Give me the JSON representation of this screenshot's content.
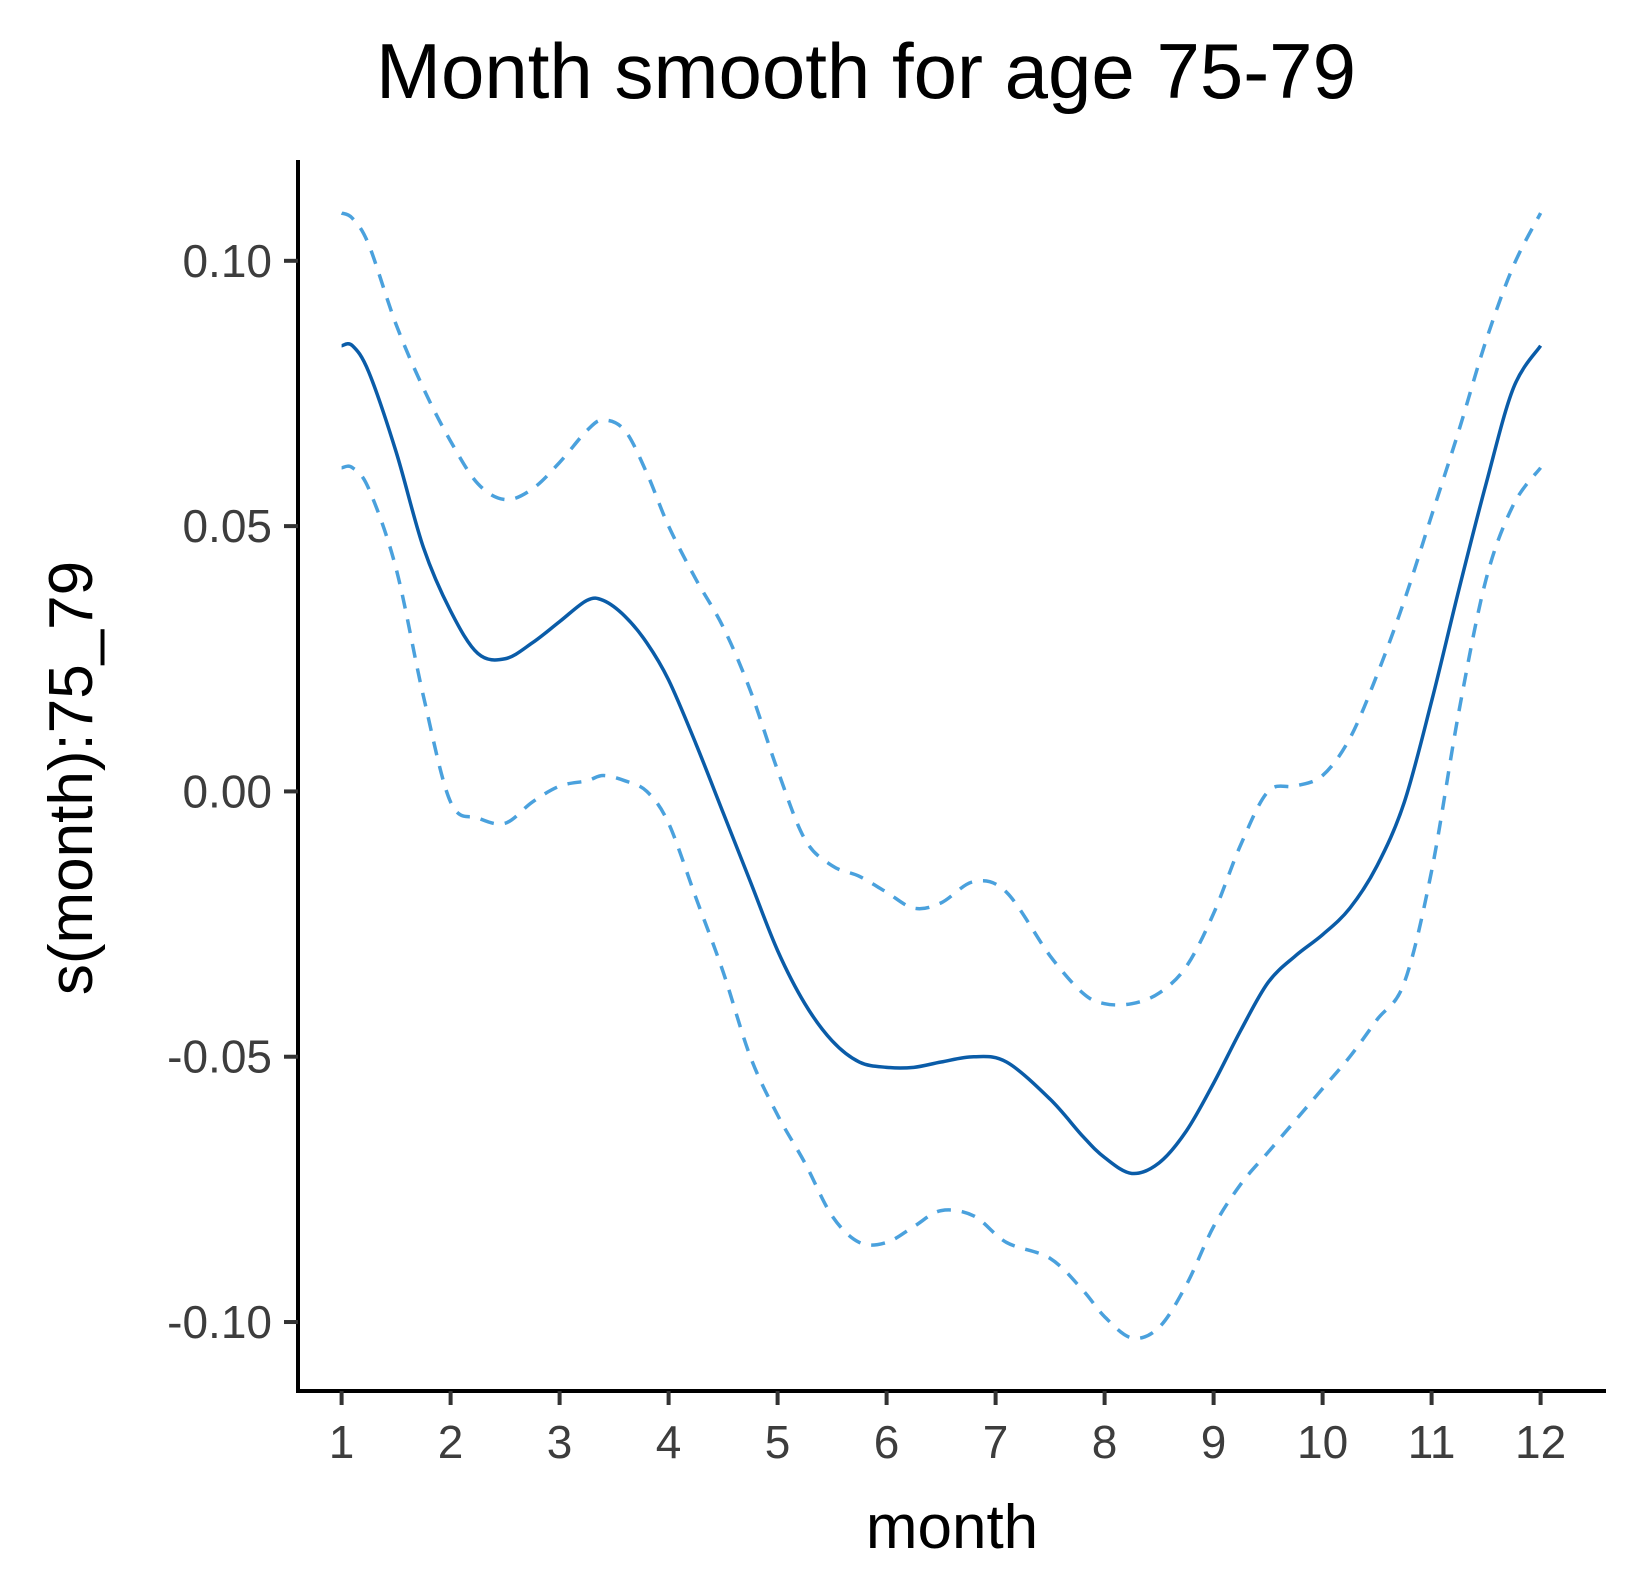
{
  "chart_data": {
    "type": "line",
    "title": "Month smooth for age 75-79",
    "xlabel": "month",
    "ylabel": "s(month):75_79",
    "xlim": [
      0.6,
      12.6
    ],
    "ylim": [
      -0.113,
      0.119
    ],
    "x_ticks": [
      1,
      2,
      3,
      4,
      5,
      6,
      7,
      8,
      9,
      10,
      11,
      12
    ],
    "x_tick_labels": [
      "1",
      "2",
      "3",
      "4",
      "5",
      "6",
      "7",
      "8",
      "9",
      "10",
      "11",
      "12"
    ],
    "y_ticks": [
      0.1,
      0.05,
      0.0,
      -0.05,
      -0.1
    ],
    "y_tick_labels": [
      "0.10",
      "0.05",
      "0.00",
      "-0.05",
      "-0.10"
    ],
    "grid": false,
    "colors": {
      "fit": "#0a5ca8",
      "ci": "#4aa1dd"
    },
    "series": [
      {
        "style": "solid",
        "x": [
          1,
          1.1,
          1.25,
          1.5,
          1.75,
          2,
          2.25,
          2.5,
          2.75,
          3,
          3.25,
          3.4,
          3.6,
          3.8,
          4,
          4.25,
          4.5,
          4.75,
          5,
          5.25,
          5.5,
          5.75,
          6,
          6.25,
          6.5,
          6.8,
          7.1,
          7.5,
          7.8,
          8.0,
          8.25,
          8.5,
          8.75,
          9,
          9.25,
          9.5,
          9.75,
          10,
          10.25,
          10.5,
          10.75,
          11,
          11.25,
          11.5,
          11.75,
          12
        ],
        "values": [
          0.084,
          0.084,
          0.079,
          0.064,
          0.046,
          0.034,
          0.026,
          0.025,
          0.028,
          0.032,
          0.036,
          0.036,
          0.033,
          0.028,
          0.021,
          0.009,
          -0.004,
          -0.017,
          -0.03,
          -0.04,
          -0.047,
          -0.051,
          -0.052,
          -0.052,
          -0.051,
          -0.05,
          -0.051,
          -0.058,
          -0.065,
          -0.069,
          -0.072,
          -0.07,
          -0.064,
          -0.055,
          -0.045,
          -0.036,
          -0.031,
          -0.027,
          -0.022,
          -0.014,
          -0.002,
          0.017,
          0.038,
          0.058,
          0.076,
          0.084
        ]
      },
      {
        "style": "dashed",
        "x": [
          1,
          1.1,
          1.25,
          1.5,
          1.75,
          2,
          2.25,
          2.5,
          2.75,
          3,
          3.25,
          3.4,
          3.6,
          3.8,
          4,
          4.25,
          4.5,
          4.75,
          5,
          5.25,
          5.5,
          5.75,
          6,
          6.25,
          6.5,
          6.8,
          7.1,
          7.5,
          7.8,
          8.0,
          8.25,
          8.5,
          8.75,
          9,
          9.25,
          9.5,
          9.75,
          10,
          10.25,
          10.5,
          10.75,
          11,
          11.25,
          11.5,
          11.75,
          12
        ],
        "values": [
          0.109,
          0.108,
          0.103,
          0.088,
          0.076,
          0.066,
          0.058,
          0.055,
          0.057,
          0.062,
          0.068,
          0.07,
          0.068,
          0.06,
          0.05,
          0.04,
          0.031,
          0.019,
          0.004,
          -0.009,
          -0.014,
          -0.016,
          -0.019,
          -0.022,
          -0.021,
          -0.017,
          -0.019,
          -0.031,
          -0.038,
          -0.04,
          -0.04,
          -0.038,
          -0.033,
          -0.023,
          -0.01,
          0.0,
          0.001,
          0.003,
          0.01,
          0.022,
          0.036,
          0.052,
          0.068,
          0.085,
          0.099,
          0.109
        ]
      },
      {
        "style": "dashed",
        "x": [
          1,
          1.1,
          1.25,
          1.5,
          1.75,
          2,
          2.25,
          2.5,
          2.75,
          3,
          3.25,
          3.4,
          3.6,
          3.8,
          4,
          4.25,
          4.5,
          4.75,
          5,
          5.25,
          5.5,
          5.75,
          6,
          6.25,
          6.5,
          6.8,
          7.1,
          7.5,
          7.8,
          8.0,
          8.25,
          8.5,
          8.75,
          9,
          9.25,
          9.5,
          9.75,
          10,
          10.25,
          10.5,
          10.75,
          11,
          11.25,
          11.5,
          11.75,
          12
        ],
        "values": [
          0.061,
          0.061,
          0.057,
          0.042,
          0.018,
          -0.002,
          -0.005,
          -0.006,
          -0.002,
          0.001,
          0.002,
          0.003,
          0.002,
          0.0,
          -0.006,
          -0.02,
          -0.034,
          -0.05,
          -0.061,
          -0.07,
          -0.08,
          -0.085,
          -0.085,
          -0.082,
          -0.079,
          -0.08,
          -0.085,
          -0.088,
          -0.094,
          -0.099,
          -0.103,
          -0.101,
          -0.093,
          -0.082,
          -0.074,
          -0.068,
          -0.062,
          -0.056,
          -0.05,
          -0.043,
          -0.036,
          -0.015,
          0.015,
          0.04,
          0.054,
          0.061
        ]
      }
    ]
  }
}
